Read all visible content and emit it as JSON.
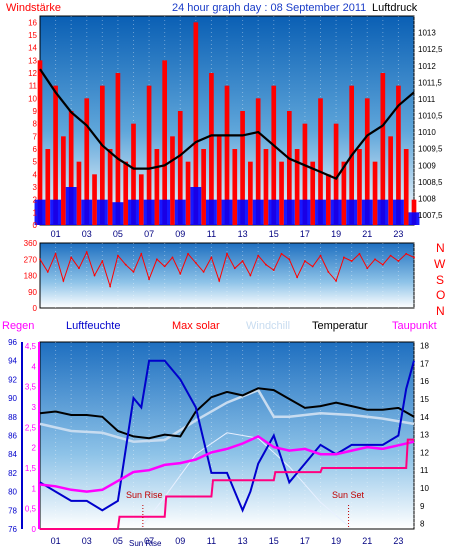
{
  "header": {
    "title_text": "24 hour graph day : 08 September 2011",
    "left_label": "Windstärke",
    "right_label": "Luftdruck"
  },
  "colors": {
    "wind_speed": "#ff0000",
    "wind_avg": "#0000ff",
    "pressure": "#000000",
    "direction": "#ff0000",
    "humidity": "#0000cc",
    "temperature": "#000000",
    "windchill": "#c8dcf0",
    "dewpoint": "#ff00ff",
    "rain": "#ff0080",
    "title": "#1a3cc8",
    "bg_top": "#0060b8",
    "bg_bottom": "#ffffff"
  },
  "chart_data": [
    {
      "type": "bar",
      "id": "wind-pressure",
      "x_ticks": [
        "01",
        "03",
        "05",
        "07",
        "09",
        "11",
        "13",
        "15",
        "17",
        "19",
        "21",
        "23"
      ],
      "x_range_hours": [
        0,
        24
      ],
      "y_left": {
        "label": "Windstärke",
        "range": [
          0,
          16.5
        ],
        "ticks": [
          "0",
          "1",
          "2",
          "3",
          "4",
          "5",
          "6",
          "7",
          "8",
          "9",
          "10",
          "11",
          "12",
          "13",
          "14",
          "15",
          "16"
        ]
      },
      "y_right": {
        "label": "Luftdruck",
        "range": [
          1007.2,
          1013.5
        ],
        "ticks": [
          "1007,5",
          "1008",
          "1008,5",
          "1009",
          "1009,5",
          "1010",
          "1010,5",
          "1011",
          "1011,5",
          "1012",
          "1012,5",
          "1013"
        ]
      },
      "series": [
        {
          "name": "Windstärke",
          "kind": "gust-bars",
          "hours": [
            0,
            0.5,
            1,
            1.5,
            2,
            2.5,
            3,
            3.5,
            4,
            4.5,
            5,
            5.5,
            6,
            6.5,
            7,
            7.5,
            8,
            8.5,
            9,
            9.5,
            10,
            10.5,
            11,
            11.5,
            12,
            12.5,
            13,
            13.5,
            14,
            14.5,
            15,
            15.5,
            16,
            16.5,
            17,
            17.5,
            18,
            18.5,
            19,
            19.5,
            20,
            20.5,
            21,
            21.5,
            22,
            22.5,
            23,
            23.5,
            24
          ],
          "values": [
            13,
            6,
            11,
            7,
            9,
            5,
            10,
            4,
            11,
            6,
            12,
            5,
            8,
            4,
            11,
            6,
            13,
            7,
            9,
            5,
            16,
            6,
            12,
            7,
            11,
            6,
            9,
            5,
            10,
            6,
            11,
            5,
            9,
            6,
            8,
            5,
            10,
            4,
            8,
            5,
            11,
            6,
            10,
            5,
            12,
            7,
            11,
            6,
            2
          ]
        },
        {
          "name": "wind-average",
          "kind": "avg-bars",
          "hours": [
            0,
            1,
            2,
            3,
            4,
            5,
            6,
            7,
            8,
            9,
            10,
            11,
            12,
            13,
            14,
            15,
            16,
            17,
            18,
            19,
            20,
            21,
            22,
            23,
            24
          ],
          "values": [
            2,
            2,
            3,
            2,
            2,
            1.8,
            2,
            2,
            2,
            2,
            3,
            2,
            2,
            2,
            2,
            2,
            2,
            2,
            2,
            2,
            2,
            2,
            2,
            2,
            1
          ]
        },
        {
          "name": "Luftdruck",
          "kind": "line",
          "hours": [
            0,
            1,
            2,
            3,
            4,
            5,
            6,
            7,
            8,
            9,
            10,
            11,
            12,
            13,
            14,
            15,
            16,
            17,
            18,
            19,
            20,
            21,
            22,
            23,
            24
          ],
          "values": [
            1011.9,
            1011.2,
            1010.6,
            1010.2,
            1009.6,
            1009.2,
            1008.9,
            1008.9,
            1009.0,
            1009.3,
            1009.7,
            1009.9,
            1009.9,
            1009.9,
            1010.0,
            1009.6,
            1009.2,
            1009.0,
            1008.8,
            1008.6,
            1009.3,
            1009.9,
            1010.2,
            1010.8,
            1011.2
          ]
        }
      ]
    },
    {
      "type": "scatter",
      "id": "wind-direction",
      "x_ticks": [
        "01",
        "03",
        "05",
        "07",
        "09",
        "11",
        "13",
        "15",
        "17",
        "19",
        "21",
        "23"
      ],
      "y_left": {
        "range": [
          0,
          360
        ],
        "ticks": [
          "0",
          "90",
          "180",
          "270",
          "360"
        ]
      },
      "compass": [
        "N",
        "W",
        "S",
        "O",
        "N"
      ],
      "series": [
        {
          "name": "direction",
          "hours": [
            0,
            0.5,
            1,
            1.5,
            2,
            2.5,
            3,
            3.5,
            4,
            4.5,
            5,
            5.5,
            6,
            6.5,
            7,
            7.5,
            8,
            8.5,
            9,
            9.5,
            10,
            10.5,
            11,
            11.5,
            12,
            12.5,
            13,
            13.5,
            14,
            14.5,
            15,
            15.5,
            16,
            16.5,
            17,
            17.5,
            18,
            18.5,
            19,
            19.5,
            20,
            20.5,
            21,
            21.5,
            22,
            22.5,
            23,
            23.5,
            24
          ],
          "values": [
            270,
            200,
            300,
            150,
            280,
            220,
            310,
            180,
            260,
            120,
            290,
            240,
            200,
            300,
            160,
            270,
            230,
            280,
            190,
            300,
            250,
            200,
            280,
            150,
            300,
            220,
            260,
            180,
            290,
            240,
            210,
            300,
            270,
            170,
            260,
            230,
            290,
            200,
            150,
            280,
            260,
            300,
            220,
            270,
            240,
            290,
            260,
            300,
            280
          ]
        }
      ]
    },
    {
      "type": "line",
      "id": "climate",
      "legend": [
        "Regen",
        "Luftfeuchte",
        "Max solar",
        "Windchill",
        "Temperatur",
        "Taupunkt"
      ],
      "x_ticks": [
        "01",
        "03",
        "05",
        "07",
        "09",
        "11",
        "13",
        "15",
        "17",
        "19",
        "21",
        "23"
      ],
      "y_rain": {
        "label": "Regen",
        "range": [
          0,
          4.6
        ],
        "ticks": [
          "0",
          "0,5",
          "1",
          "1,5",
          "2",
          "2,5",
          "3",
          "3,5",
          "4",
          "4,5"
        ]
      },
      "y_humidity": {
        "label": "Luftfeuchte",
        "range": [
          76,
          96
        ],
        "ticks": [
          "76",
          "78",
          "80",
          "82",
          "84",
          "86",
          "88",
          "90",
          "92",
          "94",
          "96"
        ]
      },
      "y_temp": {
        "label": "Temperatur",
        "range": [
          7.7,
          18.2
        ],
        "ticks": [
          "8",
          "9",
          "10",
          "11",
          "12",
          "13",
          "14",
          "15",
          "16",
          "17",
          "18"
        ]
      },
      "annotations": {
        "sun_rise": "Sun Rise",
        "sun_set": "Sun Set",
        "sun_rise_label": "Sun Rise"
      },
      "series": [
        {
          "name": "Temperatur",
          "axis": "temp",
          "hours": [
            0,
            1,
            2,
            3,
            4,
            5,
            6,
            7,
            8,
            9,
            10,
            11,
            12,
            13,
            14,
            15,
            16,
            17,
            18,
            19,
            20,
            21,
            22,
            23,
            24
          ],
          "values": [
            14.2,
            14.3,
            14.1,
            14.1,
            14.0,
            13.2,
            12.9,
            12.8,
            13.0,
            12.9,
            14.3,
            15.1,
            15.4,
            15.2,
            15.6,
            15.5,
            15.0,
            14.5,
            14.6,
            14.8,
            14.6,
            14.4,
            14.4,
            14.5,
            14.0
          ]
        },
        {
          "name": "Windchill",
          "axis": "temp",
          "hours": [
            0,
            2,
            4,
            6,
            8,
            10,
            12,
            14,
            15,
            16,
            18,
            20,
            22,
            24
          ],
          "values": [
            13.6,
            13.2,
            13.1,
            12.6,
            12.7,
            13.8,
            14.8,
            15.5,
            14.0,
            14.0,
            14.2,
            14.1,
            13.9,
            13.6
          ]
        },
        {
          "name": "Taupunkt",
          "axis": "temp",
          "hours": [
            0,
            1,
            2,
            3,
            4,
            5,
            6,
            7,
            8,
            9,
            10,
            11,
            12,
            13,
            14,
            15,
            16,
            17,
            18,
            19,
            20,
            21,
            22,
            23,
            24
          ],
          "values": [
            10.2,
            10.1,
            9.9,
            9.8,
            9.9,
            10.4,
            10.9,
            11.0,
            11.3,
            11.4,
            11.6,
            12.0,
            12.2,
            12.5,
            12.9,
            12.3,
            12.1,
            12.2,
            11.9,
            11.9,
            12.1,
            12.3,
            12.2,
            12.4,
            12.6
          ]
        },
        {
          "name": "Luftfeuchte",
          "axis": "humidity",
          "hours": [
            0,
            1,
            2,
            3,
            4,
            5,
            6,
            6.5,
            7,
            7.5,
            8,
            9,
            10,
            11,
            12,
            12.5,
            13,
            13.5,
            14,
            15,
            16,
            17,
            18,
            19,
            20,
            21,
            22,
            23,
            23.5,
            24
          ],
          "values": [
            81,
            80,
            79,
            79,
            78,
            79,
            90,
            89,
            94,
            94,
            94,
            92,
            89,
            82,
            82,
            80,
            78,
            80,
            83,
            86,
            81,
            83,
            85,
            84,
            85,
            85,
            85,
            86,
            91,
            94
          ]
        },
        {
          "name": "Regen",
          "axis": "rain",
          "hours": [
            0,
            5,
            5.1,
            8,
            8.1,
            11,
            11.1,
            15,
            15.1,
            18,
            18.1,
            23.5,
            23.6,
            24
          ],
          "values": [
            0,
            0,
            0.3,
            0.3,
            0.8,
            0.8,
            1.2,
            1.2,
            1.4,
            1.4,
            1.5,
            1.5,
            2.2,
            2.2
          ]
        },
        {
          "name": "Max solar",
          "axis": "temp",
          "hours": [
            6.5,
            8,
            10,
            12,
            14,
            16,
            18,
            19.9
          ],
          "values": [
            7.8,
            9.5,
            11.9,
            13.1,
            12.8,
            11.2,
            9.2,
            7.8
          ]
        }
      ]
    }
  ]
}
